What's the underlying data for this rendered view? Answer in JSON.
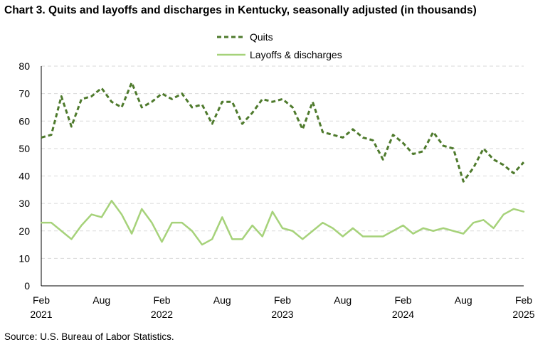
{
  "chart_data": {
    "type": "line",
    "title": "Chart 3. Quits and layoffs and discharges in Kentucky, seasonally adjusted (in thousands)",
    "source": "Source: U.S. Bureau of Labor Statistics.",
    "ylim": [
      0,
      80
    ],
    "yticks": [
      0,
      10,
      20,
      30,
      40,
      50,
      60,
      70,
      80
    ],
    "grid": true,
    "legend_position": "top-center",
    "x_ticks": [
      {
        "index": 0,
        "month": "Feb",
        "year": "2021"
      },
      {
        "index": 6,
        "month": "Aug",
        "year": ""
      },
      {
        "index": 12,
        "month": "Feb",
        "year": "2022"
      },
      {
        "index": 18,
        "month": "Aug",
        "year": ""
      },
      {
        "index": 24,
        "month": "Feb",
        "year": "2023"
      },
      {
        "index": 30,
        "month": "Aug",
        "year": ""
      },
      {
        "index": 36,
        "month": "Feb",
        "year": "2024"
      },
      {
        "index": 42,
        "month": "Aug",
        "year": ""
      },
      {
        "index": 48,
        "month": "Feb",
        "year": "2025"
      }
    ],
    "series": [
      {
        "name": "Quits",
        "color": "#4e7a2c",
        "style": "dashed",
        "values": [
          54,
          55,
          69,
          58,
          68,
          69,
          72,
          67,
          65,
          74,
          65,
          67,
          70,
          68,
          70,
          65,
          66,
          59,
          67,
          67,
          59,
          63,
          68,
          67,
          68,
          65,
          57,
          67,
          56,
          55,
          54,
          57,
          54,
          53,
          46,
          55,
          52,
          48,
          49,
          56,
          51,
          50,
          38,
          43,
          50,
          46,
          44,
          41,
          45
        ]
      },
      {
        "name": "Layoffs & discharges",
        "color": "#a6d27a",
        "style": "solid",
        "values": [
          23,
          23,
          20,
          17,
          22,
          26,
          25,
          31,
          26,
          19,
          28,
          23,
          16,
          23,
          23,
          20,
          15,
          17,
          25,
          17,
          17,
          22,
          18,
          27,
          21,
          20,
          17,
          20,
          23,
          21,
          18,
          21,
          18,
          18,
          18,
          20,
          22,
          19,
          21,
          20,
          21,
          20,
          19,
          23,
          24,
          21,
          26,
          28,
          27
        ]
      }
    ]
  }
}
